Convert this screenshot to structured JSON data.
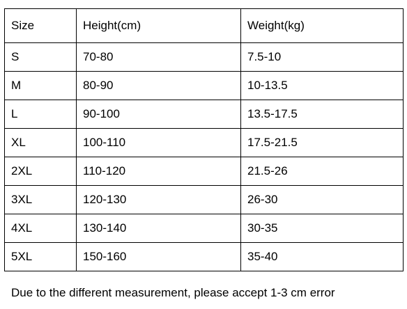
{
  "table": {
    "headers": [
      "Size",
      "Height(cm)",
      "Weight(kg)"
    ],
    "rows": [
      [
        "S",
        "70-80",
        "7.5-10"
      ],
      [
        "M",
        "80-90",
        "10-13.5"
      ],
      [
        "L",
        "90-100",
        "13.5-17.5"
      ],
      [
        "XL",
        "100-110",
        "17.5-21.5"
      ],
      [
        "2XL",
        "110-120",
        "21.5-26"
      ],
      [
        "3XL",
        "120-130",
        "26-30"
      ],
      [
        "4XL",
        "130-140",
        "30-35"
      ],
      [
        "5XL",
        "150-160",
        "35-40"
      ]
    ]
  },
  "note": "Due to the different measurement, please accept 1-3 cm error"
}
